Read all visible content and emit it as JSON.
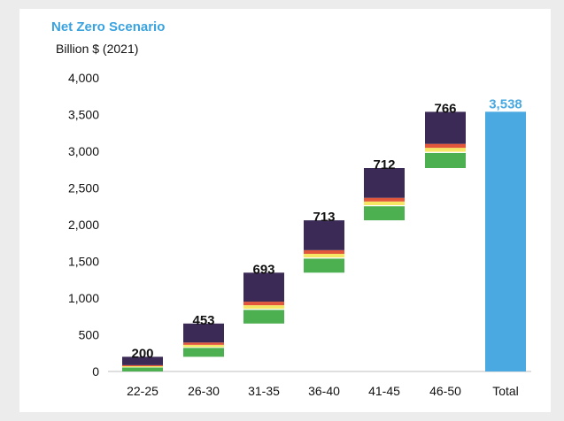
{
  "chart_data": {
    "type": "bar",
    "subtype": "waterfall-stacked",
    "title": "Net Zero Scenario",
    "ylabel": "Billion $ (2021)",
    "ylim": [
      0,
      4000
    ],
    "yticks": [
      "0",
      "500",
      "1,000",
      "1,500",
      "2,000",
      "2,500",
      "3,000",
      "3,500",
      "4,000"
    ],
    "categories": [
      "22-25",
      "26-30",
      "31-35",
      "36-40",
      "41-45",
      "46-50",
      "Total"
    ],
    "segment_colors": [
      "#4caf50",
      "#ffffff",
      "#f5e663",
      "#e2573c",
      "#3b2a55"
    ],
    "segment_shares": [
      0.27,
      0.02,
      0.07,
      0.07,
      0.57
    ],
    "increments": [
      {
        "category": "22-25",
        "label": "200",
        "base": 0,
        "value": 200
      },
      {
        "category": "26-30",
        "label": "453",
        "base": 200,
        "value": 453
      },
      {
        "category": "31-35",
        "label": "693",
        "base": 653,
        "value": 693
      },
      {
        "category": "36-40",
        "label": "713",
        "base": 1346,
        "value": 713
      },
      {
        "category": "41-45",
        "label": "712",
        "base": 2059,
        "value": 712
      },
      {
        "category": "46-50",
        "label": "766",
        "base": 2771,
        "value": 766
      }
    ],
    "total": {
      "category": "Total",
      "label": "3,538",
      "value": 3538,
      "color": "#4aa9e0"
    },
    "grid": false,
    "legend": "none"
  }
}
